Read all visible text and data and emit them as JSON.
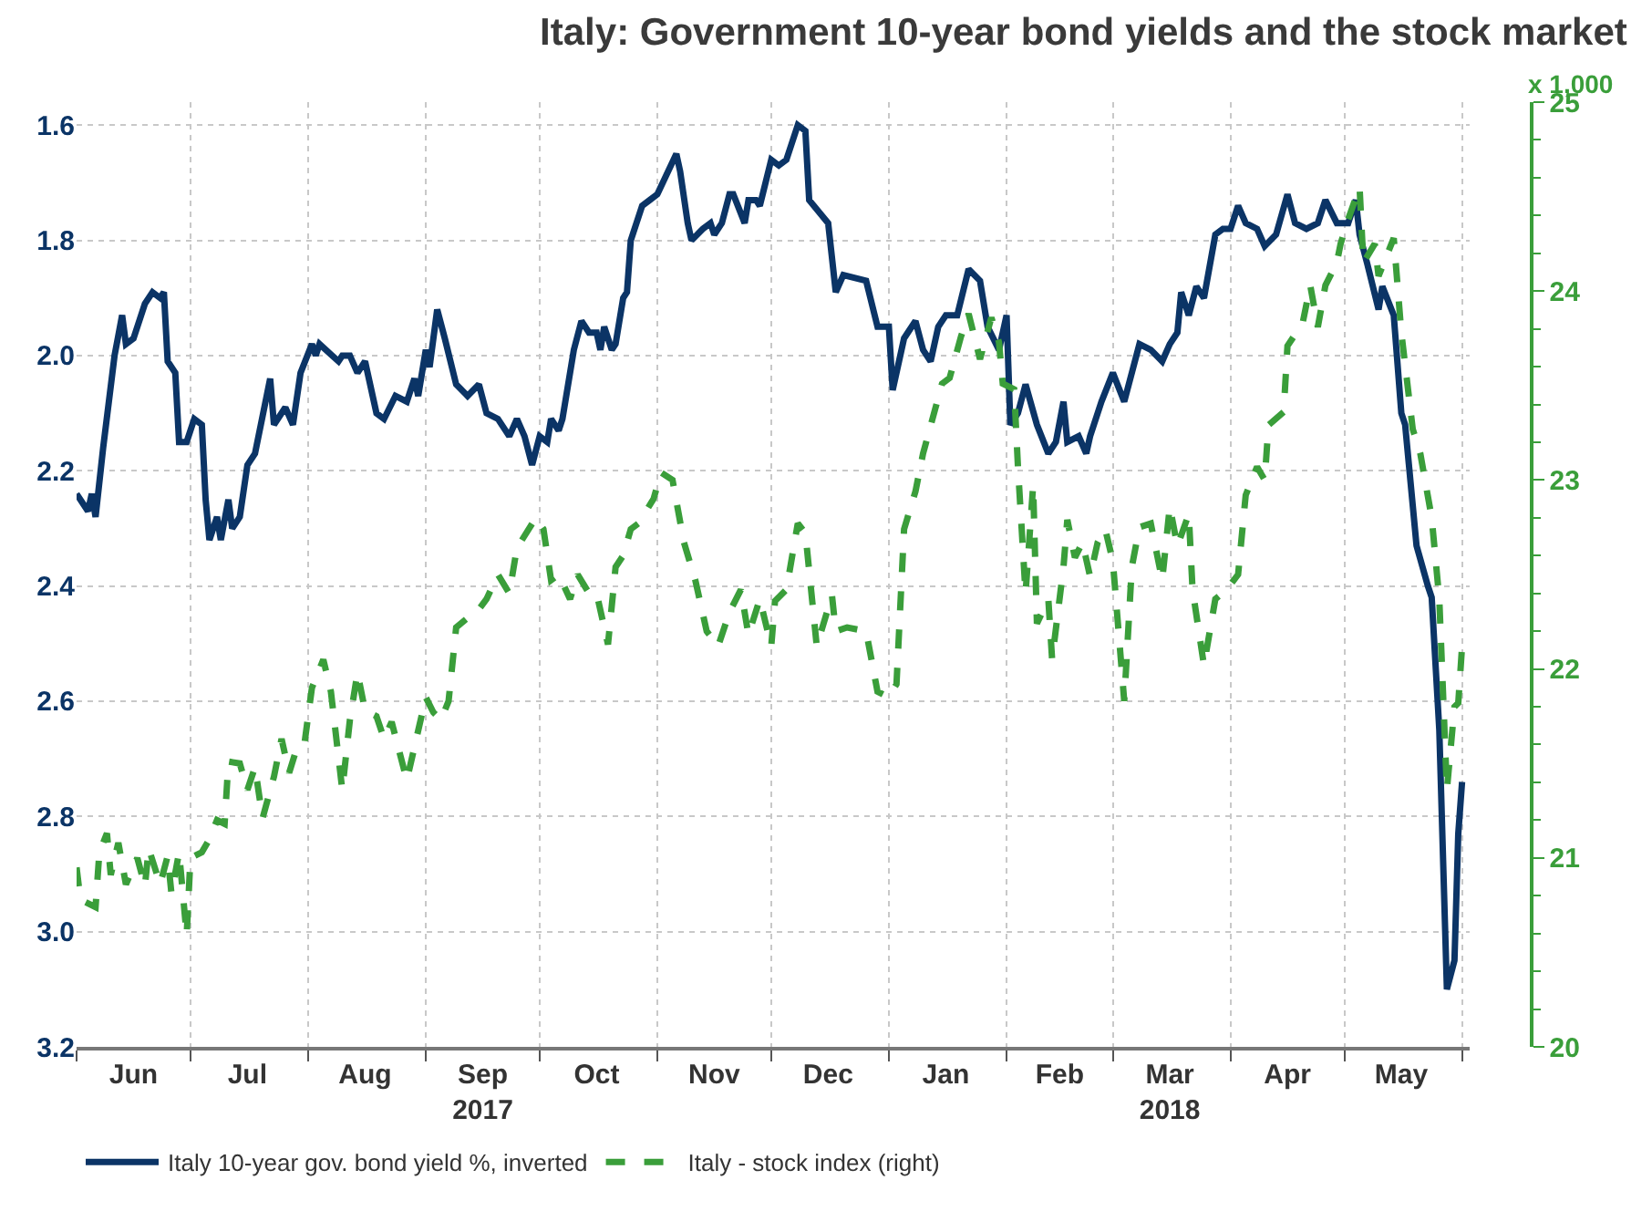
{
  "chart_data": {
    "type": "line",
    "title": "Italy: Government 10-year bond yields and the stock market",
    "y2label": "x 1,000",
    "xlim": [
      "2017-06-01",
      "2018-06-03"
    ],
    "xticks": [
      {
        "value": "2017-06-16",
        "label": "Jun"
      },
      {
        "value": "2017-07-16",
        "label": "Jul"
      },
      {
        "value": "2017-08-16",
        "label": "Aug"
      },
      {
        "value": "2017-09-16",
        "label": "Sep\n2017"
      },
      {
        "value": "2017-10-16",
        "label": "Oct"
      },
      {
        "value": "2017-11-16",
        "label": "Nov"
      },
      {
        "value": "2017-12-16",
        "label": "Dec"
      },
      {
        "value": "2018-01-16",
        "label": "Jan"
      },
      {
        "value": "2018-02-15",
        "label": "Feb"
      },
      {
        "value": "2018-03-16",
        "label": "Mar\n2018"
      },
      {
        "value": "2018-04-16",
        "label": "Apr"
      },
      {
        "value": "2018-05-16",
        "label": "May"
      }
    ],
    "ylim": [
      3.2,
      1.56
    ],
    "yticks": [
      {
        "value": 1.6,
        "label": "1.6"
      },
      {
        "value": 1.8,
        "label": "1.8"
      },
      {
        "value": 2.0,
        "label": "2.0"
      },
      {
        "value": 2.2,
        "label": "2.2"
      },
      {
        "value": 2.4,
        "label": "2.4"
      },
      {
        "value": 2.6,
        "label": "2.6"
      },
      {
        "value": 2.8,
        "label": "2.8"
      },
      {
        "value": 3.0,
        "label": "3.0"
      },
      {
        "value": 3.2,
        "label": "3.2"
      }
    ],
    "y2lim": [
      20,
      25
    ],
    "y2ticks": [
      20,
      21,
      22,
      23,
      24,
      25
    ],
    "grid": true,
    "legend": "bottom",
    "series": [
      {
        "name": "Italy 10-year gov. bond yield %, inverted",
        "color": "#0b3466",
        "line_style": "solid",
        "x": [
          "2017-06-01",
          "2017-06-04",
          "2017-06-05",
          "2017-06-06",
          "2017-06-08",
          "2017-06-11",
          "2017-06-13",
          "2017-06-14",
          "2017-06-16",
          "2017-06-19",
          "2017-06-21",
          "2017-06-23",
          "2017-06-24",
          "2017-06-25",
          "2017-06-27",
          "2017-06-28",
          "2017-06-30",
          "2017-07-02",
          "2017-07-04",
          "2017-07-05",
          "2017-07-06",
          "2017-07-08",
          "2017-07-09",
          "2017-07-11",
          "2017-07-12",
          "2017-07-14",
          "2017-07-16",
          "2017-07-18",
          "2017-07-22",
          "2017-07-23",
          "2017-07-26",
          "2017-07-28",
          "2017-07-30",
          "2017-08-02",
          "2017-08-03",
          "2017-08-04",
          "2017-08-09",
          "2017-08-10",
          "2017-08-12",
          "2017-08-14",
          "2017-08-16",
          "2017-08-19",
          "2017-08-21",
          "2017-08-24",
          "2017-08-27",
          "2017-08-29",
          "2017-08-30",
          "2017-09-01",
          "2017-09-02",
          "2017-09-04",
          "2017-09-06",
          "2017-09-09",
          "2017-09-12",
          "2017-09-15",
          "2017-09-17",
          "2017-09-20",
          "2017-09-23",
          "2017-09-25",
          "2017-09-27",
          "2017-09-29",
          "2017-10-01",
          "2017-10-03",
          "2017-10-04",
          "2017-10-06",
          "2017-10-07",
          "2017-10-10",
          "2017-10-12",
          "2017-10-14",
          "2017-10-16",
          "2017-10-17",
          "2017-10-18",
          "2017-10-20",
          "2017-10-21",
          "2017-10-23",
          "2017-10-24",
          "2017-10-25",
          "2017-10-28",
          "2017-10-30",
          "2017-11-01",
          "2017-11-06",
          "2017-11-07",
          "2017-11-09",
          "2017-11-10",
          "2017-11-13",
          "2017-11-15",
          "2017-11-16",
          "2017-11-18",
          "2017-11-20",
          "2017-11-21",
          "2017-11-24",
          "2017-11-25",
          "2017-11-27",
          "2017-11-28",
          "2017-12-01",
          "2017-12-03",
          "2017-12-05",
          "2017-12-08",
          "2017-12-10",
          "2017-12-11",
          "2017-12-16",
          "2017-12-18",
          "2017-12-20",
          "2017-12-26",
          "2017-12-29",
          "2018-01-01",
          "2018-01-02",
          "2018-01-05",
          "2018-01-08",
          "2018-01-10",
          "2018-01-12",
          "2018-01-14",
          "2018-01-16",
          "2018-01-19",
          "2018-01-22",
          "2018-01-25",
          "2018-01-27",
          "2018-01-30",
          "2018-02-01",
          "2018-02-02",
          "2018-02-04",
          "2018-02-06",
          "2018-02-09",
          "2018-02-12",
          "2018-02-14",
          "2018-02-16",
          "2018-02-17",
          "2018-02-20",
          "2018-02-22",
          "2018-02-23",
          "2018-02-26",
          "2018-03-01",
          "2018-03-04",
          "2018-03-08",
          "2018-03-11",
          "2018-03-14",
          "2018-03-16",
          "2018-03-18",
          "2018-03-19",
          "2018-03-21",
          "2018-03-23",
          "2018-03-25",
          "2018-03-28",
          "2018-03-30",
          "2018-04-01",
          "2018-04-03",
          "2018-04-05",
          "2018-04-08",
          "2018-04-10",
          "2018-04-13",
          "2018-04-16",
          "2018-04-18",
          "2018-04-21",
          "2018-04-24",
          "2018-04-26",
          "2018-04-29",
          "2018-05-02",
          "2018-05-04",
          "2018-05-05",
          "2018-05-07",
          "2018-05-10",
          "2018-05-11",
          "2018-05-14",
          "2018-05-16",
          "2018-05-17",
          "2018-05-20",
          "2018-05-23",
          "2018-05-24",
          "2018-05-26",
          "2018-05-28",
          "2018-05-30",
          "2018-05-31",
          "2018-06-01"
        ],
        "values": [
          2.24,
          2.27,
          2.24,
          2.28,
          2.16,
          2.0,
          1.93,
          1.98,
          1.97,
          1.91,
          1.89,
          1.9,
          1.89,
          2.01,
          2.03,
          2.15,
          2.15,
          2.11,
          2.12,
          2.25,
          2.32,
          2.28,
          2.32,
          2.25,
          2.3,
          2.28,
          2.19,
          2.17,
          2.04,
          2.12,
          2.09,
          2.12,
          2.03,
          1.98,
          2.0,
          1.98,
          2.01,
          2.0,
          2.0,
          2.03,
          2.01,
          2.1,
          2.11,
          2.07,
          2.08,
          2.04,
          2.07,
          1.99,
          2.02,
          1.92,
          1.97,
          2.05,
          2.07,
          2.05,
          2.1,
          2.11,
          2.14,
          2.11,
          2.14,
          2.19,
          2.14,
          2.15,
          2.11,
          2.13,
          2.11,
          1.99,
          1.94,
          1.96,
          1.96,
          1.99,
          1.95,
          1.99,
          1.98,
          1.9,
          1.89,
          1.8,
          1.74,
          1.73,
          1.72,
          1.65,
          1.68,
          1.77,
          1.8,
          1.78,
          1.77,
          1.79,
          1.77,
          1.72,
          1.72,
          1.77,
          1.73,
          1.73,
          1.74,
          1.66,
          1.67,
          1.66,
          1.6,
          1.61,
          1.73,
          1.77,
          1.89,
          1.86,
          1.87,
          1.95,
          1.95,
          2.06,
          1.97,
          1.94,
          1.99,
          2.01,
          1.95,
          1.93,
          1.93,
          1.85,
          1.87,
          1.95,
          1.99,
          1.93,
          2.12,
          2.1,
          2.05,
          2.12,
          2.17,
          2.15,
          2.08,
          2.15,
          2.14,
          2.17,
          2.14,
          2.08,
          2.03,
          2.08,
          1.98,
          1.99,
          2.01,
          1.98,
          1.96,
          1.89,
          1.93,
          1.88,
          1.9,
          1.79,
          1.78,
          1.78,
          1.74,
          1.77,
          1.78,
          1.81,
          1.79,
          1.72,
          1.77,
          1.78,
          1.77,
          1.73,
          1.77,
          1.77,
          1.73,
          1.79,
          1.84,
          1.92,
          1.88,
          1.93,
          2.1,
          2.12,
          2.33,
          2.4,
          2.42,
          2.65,
          3.1,
          3.05,
          2.83,
          2.74
        ]
      },
      {
        "name": "Italy - stock index (right)",
        "color": "#3a9e3a",
        "line_style": "dashed",
        "axis": "y2",
        "x": [
          "2017-06-01",
          "2017-06-02",
          "2017-06-04",
          "2017-06-06",
          "2017-06-07",
          "2017-06-09",
          "2017-06-10",
          "2017-06-12",
          "2017-06-14",
          "2017-06-17",
          "2017-06-19",
          "2017-06-20",
          "2017-06-23",
          "2017-06-25",
          "2017-06-26",
          "2017-06-28",
          "2017-06-30",
          "2017-07-01",
          "2017-07-04",
          "2017-07-06",
          "2017-07-08",
          "2017-07-10",
          "2017-07-11",
          "2017-07-14",
          "2017-07-16",
          "2017-07-18",
          "2017-07-20",
          "2017-07-23",
          "2017-07-25",
          "2017-07-27",
          "2017-07-29",
          "2017-07-31",
          "2017-08-02",
          "2017-08-05",
          "2017-08-07",
          "2017-08-10",
          "2017-08-12",
          "2017-08-14",
          "2017-08-16",
          "2017-08-19",
          "2017-08-21",
          "2017-08-23",
          "2017-08-27",
          "2017-09-01",
          "2017-09-03",
          "2017-09-05",
          "2017-09-07",
          "2017-09-09",
          "2017-09-12",
          "2017-09-14",
          "2017-09-17",
          "2017-09-20",
          "2017-09-23",
          "2017-09-25",
          "2017-09-30",
          "2017-10-02",
          "2017-10-04",
          "2017-10-06",
          "2017-10-09",
          "2017-10-11",
          "2017-10-14",
          "2017-10-16",
          "2017-10-19",
          "2017-10-21",
          "2017-10-23",
          "2017-10-25",
          "2017-10-27",
          "2017-10-31",
          "2017-11-02",
          "2017-11-05",
          "2017-11-08",
          "2017-11-11",
          "2017-11-14",
          "2017-11-17",
          "2017-11-20",
          "2017-11-23",
          "2017-11-25",
          "2017-11-28",
          "2017-12-01",
          "2017-12-02",
          "2017-12-05",
          "2017-12-08",
          "2017-12-10",
          "2017-12-13",
          "2017-12-17",
          "2017-12-18",
          "2017-12-21",
          "2017-12-26",
          "2017-12-29",
          "2018-01-01",
          "2018-01-03",
          "2018-01-05",
          "2018-01-08",
          "2018-01-10",
          "2018-01-15",
          "2018-01-17",
          "2018-01-20",
          "2018-01-22",
          "2018-01-25",
          "2018-01-28",
          "2018-01-30",
          "2018-01-31",
          "2018-02-03",
          "2018-02-04",
          "2018-02-06",
          "2018-02-08",
          "2018-02-09",
          "2018-02-12",
          "2018-02-13",
          "2018-02-16",
          "2018-02-17",
          "2018-02-19",
          "2018-02-21",
          "2018-02-23",
          "2018-02-25",
          "2018-02-27",
          "2018-03-01",
          "2018-03-04",
          "2018-03-06",
          "2018-03-08",
          "2018-03-11",
          "2018-03-14",
          "2018-03-16",
          "2018-03-18",
          "2018-03-21",
          "2018-03-22",
          "2018-03-25",
          "2018-03-28",
          "2018-03-31",
          "2018-04-03",
          "2018-04-05",
          "2018-04-08",
          "2018-04-10",
          "2018-04-11",
          "2018-04-15",
          "2018-04-16",
          "2018-04-20",
          "2018-04-22",
          "2018-04-24",
          "2018-04-26",
          "2018-04-29",
          "2018-04-30",
          "2018-05-02",
          "2018-05-05",
          "2018-05-06",
          "2018-05-09",
          "2018-05-10",
          "2018-05-14",
          "2018-05-16",
          "2018-05-19",
          "2018-05-21",
          "2018-05-24",
          "2018-05-26",
          "2018-05-28",
          "2018-05-30",
          "2018-05-31",
          "2018-06-01"
        ],
        "values": [
          20.95,
          20.78,
          20.76,
          20.74,
          21.03,
          21.13,
          20.91,
          21.08,
          20.86,
          21.0,
          20.85,
          21.05,
          20.86,
          21.01,
          20.81,
          21.03,
          20.59,
          21.0,
          21.03,
          21.1,
          21.2,
          21.18,
          21.51,
          21.5,
          21.36,
          21.48,
          21.21,
          21.43,
          21.63,
          21.45,
          21.58,
          21.6,
          21.9,
          22.05,
          21.88,
          21.36,
          21.73,
          21.98,
          21.78,
          21.75,
          21.63,
          21.72,
          21.41,
          21.85,
          21.77,
          21.73,
          21.83,
          22.22,
          22.27,
          22.29,
          22.37,
          22.5,
          22.4,
          22.64,
          22.8,
          22.74,
          22.47,
          22.5,
          22.37,
          22.5,
          22.4,
          22.4,
          22.13,
          22.54,
          22.6,
          22.74,
          22.77,
          22.9,
          23.04,
          23.0,
          22.67,
          22.47,
          22.2,
          22.12,
          22.3,
          22.42,
          22.18,
          22.37,
          22.12,
          22.36,
          22.42,
          22.77,
          22.72,
          22.12,
          22.39,
          22.2,
          22.22,
          22.2,
          21.88,
          21.85,
          21.92,
          22.74,
          22.94,
          23.14,
          23.51,
          23.54,
          23.76,
          23.88,
          23.64,
          23.86,
          23.73,
          23.51,
          23.48,
          23.07,
          22.4,
          22.97,
          22.24,
          22.37,
          22.05,
          22.54,
          22.79,
          22.59,
          22.67,
          22.49,
          22.67,
          22.74,
          22.57,
          21.83,
          22.54,
          22.75,
          22.77,
          22.47,
          22.86,
          22.65,
          22.82,
          22.42,
          22.02,
          22.37,
          22.42,
          22.5,
          22.92,
          23.07,
          23.0,
          23.29,
          23.36,
          23.71,
          23.83,
          24.03,
          23.81,
          24.03,
          24.15,
          24.25,
          24.38,
          24.55,
          24.15,
          24.25,
          24.08,
          24.28,
          23.78,
          23.27,
          23.14,
          22.8,
          22.37,
          21.36,
          21.8,
          21.82,
          22.12
        ]
      }
    ]
  }
}
